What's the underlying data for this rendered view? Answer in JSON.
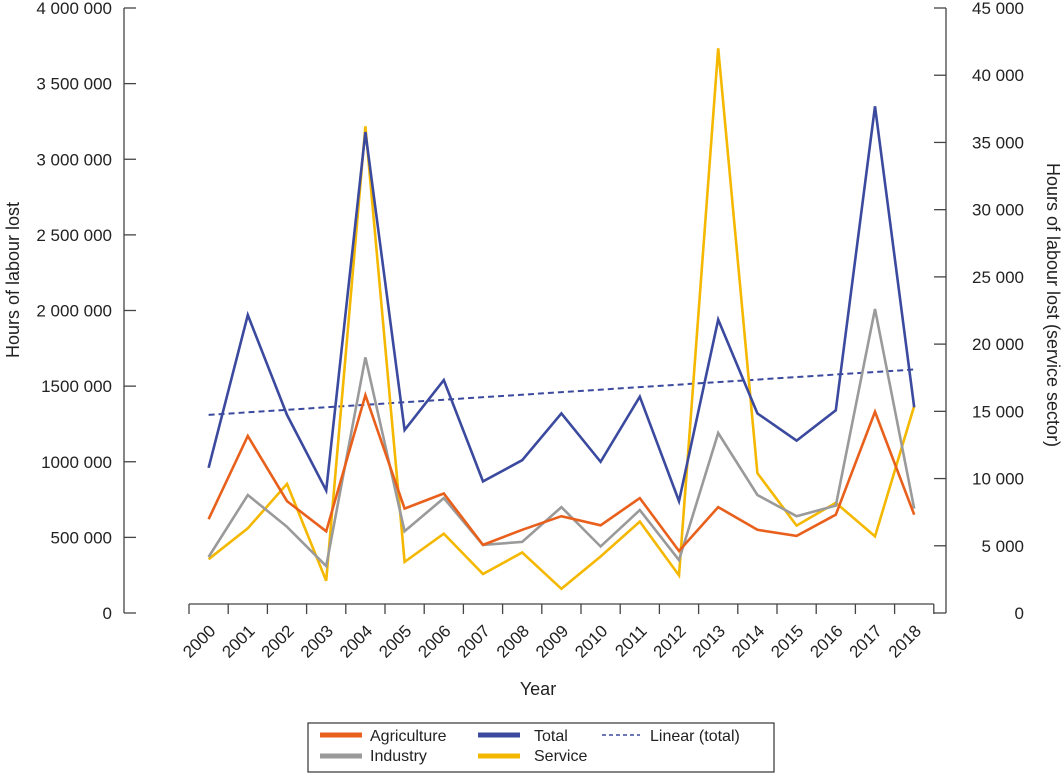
{
  "chart_data": {
    "type": "line",
    "x_tick_labels": [
      "2000",
      "2001",
      "2002",
      "2003",
      "2004",
      "2005",
      "2006",
      "2007",
      "2008",
      "2009",
      "2010",
      "2011",
      "2012",
      "2013",
      "2014",
      "2015",
      "2016",
      "2017",
      "2018"
    ],
    "x": [
      2000.5,
      2001.5,
      2002.5,
      2003.5,
      2004.5,
      2005.5,
      2006.5,
      2007.5,
      2008.5,
      2009.5,
      2010.5,
      2011.5,
      2012.5,
      2013.5,
      2014.5,
      2015.5,
      2016.5,
      2017.5,
      2018.5
    ],
    "xlabel": "Year",
    "ylabel_left": "Hours of labour lost",
    "ylabel_right": "Hours of labour lost (service sector)",
    "ylim_left": [
      0,
      4000000
    ],
    "ylim_right": [
      0,
      45000
    ],
    "xlim": [
      2000,
      2019
    ],
    "y_ticks_left": [
      0,
      500000,
      1000000,
      1500000,
      2000000,
      2500000,
      3000000,
      3500000,
      4000000
    ],
    "y_tick_labels_left": [
      "0",
      "500 000",
      "1000 000",
      "1500 000",
      "2 000 000",
      "2 500 000",
      "3 000 000",
      "3 500 000",
      "4 000 000"
    ],
    "y_ticks_right": [
      0,
      5000,
      10000,
      15000,
      20000,
      25000,
      30000,
      35000,
      40000,
      45000
    ],
    "y_tick_labels_right": [
      "0",
      "5 000",
      "10 000",
      "15 000",
      "20 000",
      "25 000",
      "30 000",
      "35 000",
      "40 000",
      "45 000"
    ],
    "series": [
      {
        "name": "Agriculture",
        "axis": "left",
        "color": "#e8601c",
        "values": [
          620000,
          1170000,
          740000,
          540000,
          1440000,
          690000,
          790000,
          450000,
          550000,
          640000,
          580000,
          760000,
          410000,
          700000,
          550000,
          510000,
          650000,
          1330000,
          650000
        ]
      },
      {
        "name": "Industry",
        "axis": "left",
        "color": "#9a9a9a",
        "values": [
          370000,
          780000,
          570000,
          310000,
          1690000,
          540000,
          760000,
          450000,
          470000,
          700000,
          440000,
          680000,
          350000,
          1190000,
          780000,
          640000,
          710000,
          2010000,
          690000
        ]
      },
      {
        "name": "Total",
        "axis": "left",
        "color": "#3b4a9e",
        "values": [
          960000,
          1970000,
          1310000,
          810000,
          3180000,
          1210000,
          1540000,
          870000,
          1010000,
          1320000,
          1000000,
          1430000,
          740000,
          1940000,
          1320000,
          1140000,
          1340000,
          3350000,
          1360000
        ]
      },
      {
        "name": "Service",
        "axis": "right",
        "color": "#f5b800",
        "values": [
          4000,
          6300,
          9600,
          2400,
          36200,
          3800,
          5900,
          2900,
          4500,
          1800,
          4200,
          6800,
          2800,
          42000,
          10400,
          6500,
          8200,
          5700,
          15400
        ]
      }
    ],
    "trendline": {
      "name": "Linear (total)",
      "axis": "left",
      "color": "#3b4a9e",
      "start": 1310000,
      "end": 1610000
    },
    "legend": {
      "position": "bottom",
      "entries": [
        "Agriculture",
        "Total",
        "Linear (total)",
        "Industry",
        "Service"
      ]
    }
  }
}
